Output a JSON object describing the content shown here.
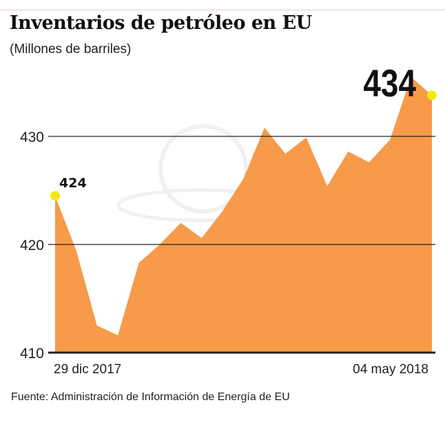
{
  "title": "Inventarios de petróleo en EU",
  "subtitle": "(Millones de barriles)",
  "source": "Fuente: Administración de Información de Energía de EU",
  "colors": {
    "area": "#f79a4a",
    "highlight": "#f2ea0c",
    "gridline": "#222222"
  },
  "chart_data": {
    "type": "area",
    "title": "Inventarios de petróleo en EU",
    "ylabel": "(Millones de barriles)",
    "xlabel": "",
    "x_tick_labels": [
      "29 dic 2017",
      "04 may 2018"
    ],
    "y_ticks": [
      410,
      420,
      430
    ],
    "ylim": [
      410,
      436
    ],
    "grid": true,
    "values": [
      424.5,
      419.5,
      412.5,
      411.6,
      418.3,
      420.0,
      422.0,
      420.6,
      423.1,
      426.1,
      430.8,
      428.4,
      429.9,
      425.4,
      428.6,
      427.6,
      429.7,
      435.5,
      433.8
    ],
    "annotations": [
      {
        "label": "424",
        "index": 0
      },
      {
        "label": "434",
        "index": 18
      }
    ]
  }
}
